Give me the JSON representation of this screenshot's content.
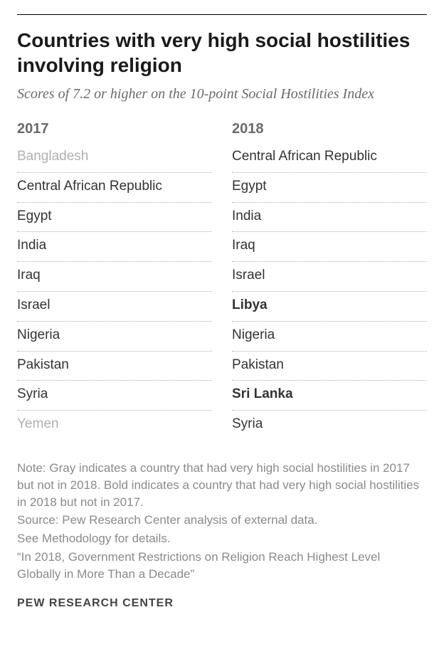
{
  "title": "Countries with very high social hostilities involving religion",
  "subtitle": "Scores of 7.2 or higher on the 10-point Social Hostilities Index",
  "columns": [
    {
      "header": "2017",
      "rows": [
        {
          "label": "Bangladesh",
          "state": "dropped"
        },
        {
          "label": "Central African Republic",
          "state": "normal"
        },
        {
          "label": "Egypt",
          "state": "normal"
        },
        {
          "label": "India",
          "state": "normal"
        },
        {
          "label": "Iraq",
          "state": "normal"
        },
        {
          "label": "Israel",
          "state": "normal"
        },
        {
          "label": "Nigeria",
          "state": "normal"
        },
        {
          "label": "Pakistan",
          "state": "normal"
        },
        {
          "label": "Syria",
          "state": "normal"
        },
        {
          "label": "Yemen",
          "state": "dropped"
        }
      ]
    },
    {
      "header": "2018",
      "rows": [
        {
          "label": "Central African Republic",
          "state": "normal"
        },
        {
          "label": "Egypt",
          "state": "normal"
        },
        {
          "label": "India",
          "state": "normal"
        },
        {
          "label": "Iraq",
          "state": "normal"
        },
        {
          "label": "Israel",
          "state": "normal"
        },
        {
          "label": "Libya",
          "state": "added"
        },
        {
          "label": "Nigeria",
          "state": "normal"
        },
        {
          "label": "Pakistan",
          "state": "normal"
        },
        {
          "label": "Sri Lanka",
          "state": "added"
        },
        {
          "label": "Syria",
          "state": "normal"
        }
      ]
    }
  ],
  "notes": {
    "line1": "Note: Gray indicates a country that had very high social hostilities in 2017 but not in 2018. Bold indicates a country that had very high social hostilities in 2018 but not in 2017.",
    "line2": "Source: Pew Research Center analysis of external data.",
    "line3": "See Methodology for details.",
    "line4": "“In 2018, Government Restrictions on Religion Reach Highest Level Globally in More Than a Decade”"
  },
  "brand": "PEW RESEARCH CENTER",
  "style": {
    "title_color": "#1a1a1a",
    "subtitle_color": "#6a6a6a",
    "header_color": "#6a6a6a",
    "row_color_normal": "#333333",
    "row_color_dropped": "#b0b0b0",
    "row_color_added": "#333333",
    "note_color": "#8a8a8a",
    "brand_color": "#444444",
    "dotted_border_color": "#b0b0b0",
    "background": "#ffffff",
    "title_fontsize": 28,
    "subtitle_fontsize": 20,
    "header_fontsize": 20,
    "row_fontsize": 19,
    "note_fontsize": 17,
    "brand_fontsize": 16
  }
}
